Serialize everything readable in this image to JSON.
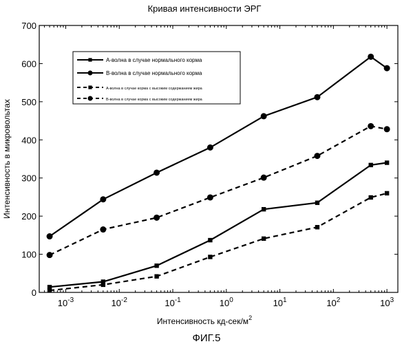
{
  "chart_data": {
    "type": "line",
    "title": "Кривая интенсивности ЭРГ",
    "xlabel": "Интенсивность кд-сек/м",
    "xlabel_superscript": "2",
    "ylabel": "Интенсивность в микровольтах",
    "x_scale": "log",
    "xlim": [
      0.00032,
      1600
    ],
    "ylim": [
      0,
      700
    ],
    "x": [
      0.0005,
      0.005,
      0.05,
      0.5,
      5,
      50,
      500,
      1000
    ],
    "y_ticks": [
      0,
      100,
      200,
      300,
      400,
      500,
      600,
      700
    ],
    "y_tick_labels": [
      "0",
      "100",
      "200",
      "300",
      "400",
      "500",
      "600",
      "700"
    ],
    "x_tick_labels": [
      {
        "base": "10",
        "exp": "-3"
      },
      {
        "base": "10",
        "exp": "-2"
      },
      {
        "base": "10",
        "exp": "-1"
      },
      {
        "base": "10",
        "exp": "0"
      },
      {
        "base": "10",
        "exp": "1"
      },
      {
        "base": "10",
        "exp": "2"
      },
      {
        "base": "10",
        "exp": "3"
      }
    ],
    "grid": false,
    "legend_position": "upper-left",
    "series": [
      {
        "name": "А-волна в случае нормального корма",
        "line": "solid",
        "marker": "square",
        "values": [
          14,
          28,
          70,
          137,
          218,
          235,
          334,
          340
        ]
      },
      {
        "name": "B-волна в случае нормального корма",
        "line": "solid",
        "marker": "circle",
        "values": [
          147,
          244,
          314,
          380,
          462,
          512,
          618,
          588
        ]
      },
      {
        "name": "А-волна в случае корма с высоким содержанием жира",
        "line": "dashed",
        "marker": "square",
        "values": [
          5,
          20,
          42,
          93,
          141,
          171,
          249,
          260
        ]
      },
      {
        "name": "B-волна в случае корма с высоким содержанием жира",
        "line": "dashed",
        "marker": "circle",
        "values": [
          98,
          165,
          196,
          249,
          301,
          358,
          436,
          428
        ]
      }
    ]
  },
  "caption": "ФИГ.5"
}
